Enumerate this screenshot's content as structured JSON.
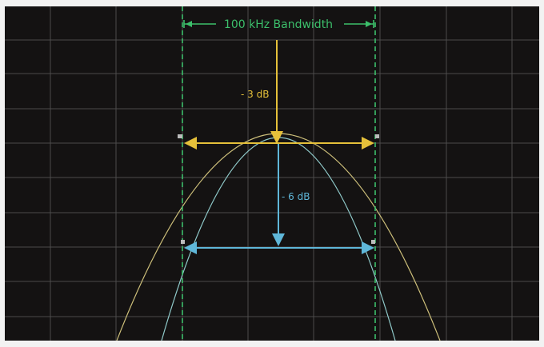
{
  "title": "100 kHz Bandwidth",
  "label_3db": "- 3 dB",
  "label_6db": "- 6 dB",
  "colors": {
    "background": "#141212",
    "grid": "#5a5a5a",
    "green": "#3cbf6b",
    "yellow": "#e5c03a",
    "blue": "#5fb7d9",
    "curve_wide": "#cdbf7a",
    "curve_narrow": "#8fc9c9"
  },
  "icons": {
    "left_arrow": "arrow-left-icon",
    "right_arrow": "arrow-right-icon"
  }
}
